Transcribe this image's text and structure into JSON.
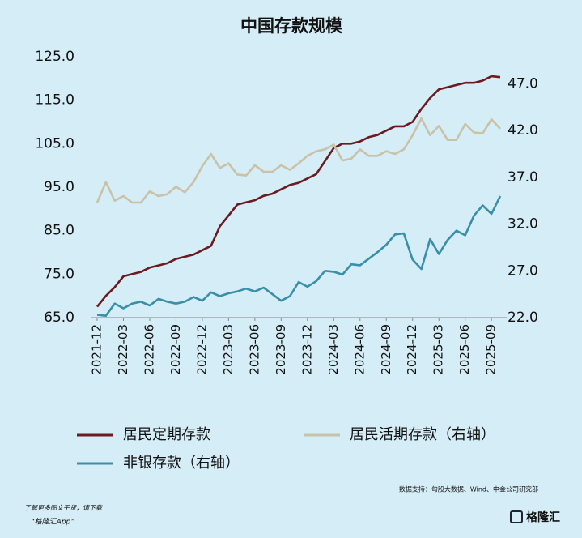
{
  "chart_data": {
    "type": "line",
    "title": "中国存款规模",
    "categories": [
      "2021-12",
      null,
      null,
      "2022-03",
      null,
      null,
      "2022-06",
      null,
      null,
      "2022-09",
      null,
      null,
      "2022-12",
      null,
      null,
      "2023-03",
      null,
      null,
      "2023-06",
      null,
      null,
      "2023-09",
      null,
      null,
      "2023-12",
      null,
      null,
      "2024-03",
      null,
      null,
      "2024-06",
      null,
      null,
      "2024-09",
      null,
      null,
      "2024-12",
      null,
      null,
      "2025-03",
      null,
      null,
      "2025-06",
      null,
      null,
      "2025-09",
      null
    ],
    "ylim": [
      65,
      125
    ],
    "yticks": [
      {
        "value": 65,
        "label": "65.0"
      },
      {
        "value": 75,
        "label": "75.0"
      },
      {
        "value": 85,
        "label": "85.0"
      },
      {
        "value": 95,
        "label": "95.0"
      },
      {
        "value": 105,
        "label": "105.0"
      },
      {
        "value": 115,
        "label": "115.0"
      },
      {
        "value": 125,
        "label": "125.0"
      }
    ],
    "y2lim": [
      22,
      49.9
    ],
    "y2ticks": [
      {
        "value": 22,
        "label": "22.0"
      },
      {
        "value": 27,
        "label": "27.0"
      },
      {
        "value": 32,
        "label": "32.0"
      },
      {
        "value": 37,
        "label": "37.0"
      },
      {
        "value": 42,
        "label": "42.0"
      },
      {
        "value": 47,
        "label": "47.0"
      }
    ],
    "series": [
      {
        "name": "居民定期存款",
        "color": "#6b1a1f",
        "values": [
          67.5,
          70,
          72,
          74.5,
          75,
          75.5,
          76.5,
          77,
          77.5,
          78.5,
          79,
          79.5,
          80.5,
          81.5,
          86,
          88.5,
          91,
          91.5,
          92,
          93,
          93.5,
          94.5,
          95.5,
          96,
          97,
          98,
          101,
          104,
          105,
          105,
          105.5,
          106.5,
          107,
          108,
          109,
          109,
          110,
          113,
          115.5,
          117.5,
          118,
          118.5,
          119,
          119,
          119.5,
          120.5,
          120.3
        ]
      },
      {
        "name": "居民活期存款（右轴）",
        "color": "#c9c2a8",
        "axis": "y2",
        "values": [
          34.3,
          36.5,
          34.5,
          35,
          34.3,
          34.3,
          35.5,
          35,
          35.2,
          36,
          35.4,
          36.5,
          38.2,
          39.5,
          38,
          38.5,
          37.3,
          37.2,
          38.3,
          37.6,
          37.6,
          38.3,
          37.8,
          38.5,
          39.3,
          39.8,
          40,
          40.5,
          38.8,
          39,
          40,
          39.3,
          39.3,
          39.8,
          39.5,
          40,
          41.5,
          43.3,
          41.5,
          42.5,
          41,
          41,
          42.7,
          41.8,
          41.7,
          43.2,
          42.2
        ]
      },
      {
        "name": "非银存款（右轴）",
        "color": "#3a8fa8",
        "axis": "y2",
        "values": [
          22.3,
          22.2,
          23.5,
          23,
          23.5,
          23.7,
          23.3,
          24,
          23.7,
          23.5,
          23.7,
          24.2,
          23.8,
          24.7,
          24.3,
          24.6,
          24.8,
          25.1,
          24.8,
          25.2,
          24.5,
          23.8,
          24.3,
          25.8,
          25.3,
          25.9,
          27,
          26.9,
          26.6,
          27.7,
          27.6,
          28.3,
          29,
          29.8,
          30.9,
          31,
          28.2,
          27.2,
          30.4,
          28.8,
          30.3,
          31.3,
          30.8,
          32.9,
          34,
          33.1,
          35
        ]
      }
    ],
    "source": "数据支持：勾股大数据、Wind、中金公司研究部"
  },
  "footer": {
    "line1": "了解更多图文干货，请下载",
    "line2": "“格隆汇App”",
    "logo": "格隆汇"
  }
}
